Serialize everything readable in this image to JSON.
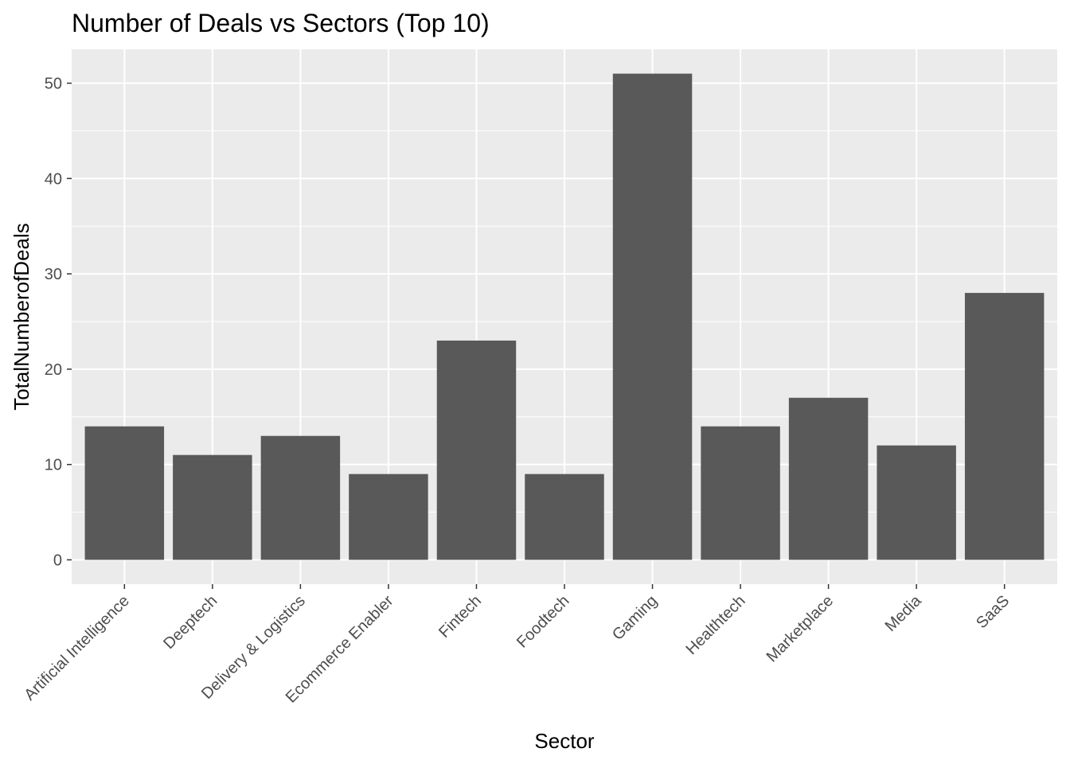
{
  "chart_data": {
    "type": "bar",
    "title": "Number of Deals vs Sectors (Top 10)",
    "xlabel": "Sector",
    "ylabel": "TotalNumberofDeals",
    "categories": [
      "Artificial Intelligence",
      "Deeptech",
      "Delivery & Logistics",
      "Ecommerce Enabler",
      "Fintech",
      "Foodtech",
      "Gaming",
      "Healthtech",
      "Marketplace",
      "Media",
      "SaaS"
    ],
    "values": [
      14,
      11,
      13,
      9,
      23,
      9,
      51,
      14,
      17,
      12,
      28
    ],
    "yticks": [
      0,
      10,
      20,
      30,
      40,
      50
    ],
    "ylim": [
      -2.55,
      53.55
    ],
    "grid": true,
    "legend": "none",
    "colors": {
      "bar": "#595959",
      "panel": "#ebebeb",
      "grid": "#ffffff"
    }
  }
}
